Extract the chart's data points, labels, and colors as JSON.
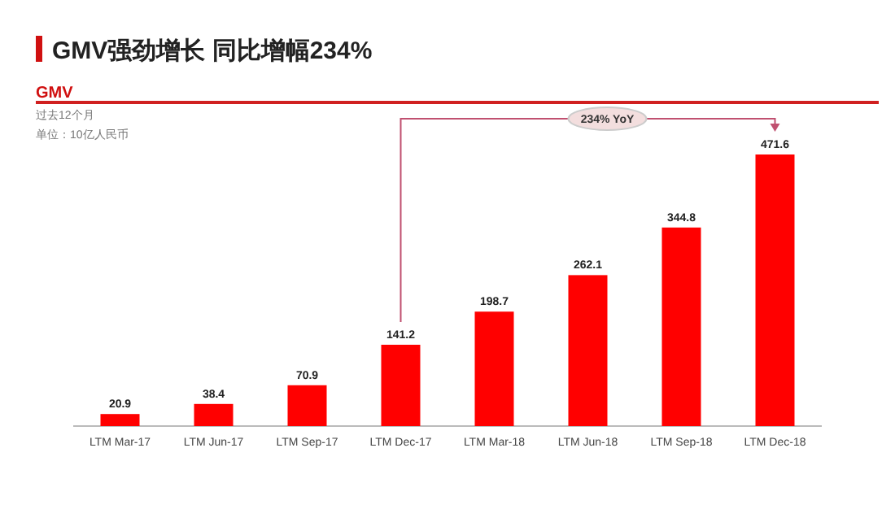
{
  "chart_data": {
    "type": "bar",
    "title": "GMV强劲增长 同比增幅234%",
    "subtitle": "GMV",
    "annotations": [
      "过去12个月",
      "单位：10亿人民币",
      "234% YoY"
    ],
    "categories": [
      "LTM Mar-17",
      "LTM Jun-17",
      "LTM Sep-17",
      "LTM Dec-17",
      "LTM Mar-18",
      "LTM Jun-18",
      "LTM Sep-18",
      "LTM Dec-18"
    ],
    "values": [
      20.9,
      38.4,
      70.9,
      141.2,
      198.7,
      262.1,
      344.8,
      471.6
    ],
    "color": "#ff0000",
    "data_labels": true
  }
}
